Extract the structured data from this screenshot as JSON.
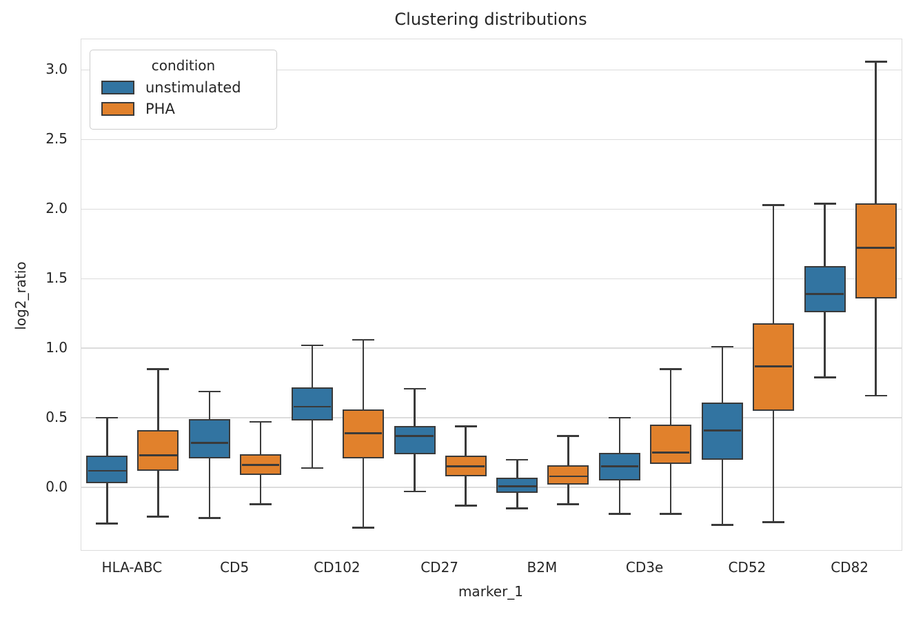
{
  "colors": {
    "unstimulated": "#3274A1",
    "pha": "#E1812C",
    "box_edge": "#3A3A3A",
    "grid": "#DCDCDC",
    "text": "#262626"
  },
  "chart_data": {
    "type": "grouped_boxplot",
    "title": "Clustering distributions",
    "xlabel": "marker_1",
    "ylabel": "log2_ratio",
    "grid": "horizontal",
    "legend": {
      "title": "condition",
      "position": "upper left"
    },
    "categories": [
      "HLA-ABC",
      "CD5",
      "CD102",
      "CD27",
      "B2M",
      "CD3e",
      "CD52",
      "CD82"
    ],
    "y_ticks": [
      "0.0",
      "0.5",
      "1.0",
      "1.5",
      "2.0",
      "2.5",
      "3.0"
    ],
    "ylim": [
      -0.45,
      3.22
    ],
    "series": [
      {
        "name": "unstimulated",
        "color": "#3274A1",
        "boxes": [
          {
            "low": -0.26,
            "q1": 0.03,
            "median": 0.12,
            "q3": 0.23,
            "high": 0.5
          },
          {
            "low": -0.22,
            "q1": 0.21,
            "median": 0.32,
            "q3": 0.49,
            "high": 0.69
          },
          {
            "low": 0.14,
            "q1": 0.48,
            "median": 0.58,
            "q3": 0.72,
            "high": 1.02
          },
          {
            "low": -0.03,
            "q1": 0.24,
            "median": 0.37,
            "q3": 0.44,
            "high": 0.71
          },
          {
            "low": -0.15,
            "q1": -0.04,
            "median": 0.01,
            "q3": 0.07,
            "high": 0.2
          },
          {
            "low": -0.19,
            "q1": 0.05,
            "median": 0.15,
            "q3": 0.25,
            "high": 0.5
          },
          {
            "low": -0.27,
            "q1": 0.2,
            "median": 0.41,
            "q3": 0.61,
            "high": 1.01
          },
          {
            "low": 0.79,
            "q1": 1.26,
            "median": 1.39,
            "q3": 1.59,
            "high": 2.04
          }
        ]
      },
      {
        "name": "PHA",
        "color": "#E1812C",
        "boxes": [
          {
            "low": -0.21,
            "q1": 0.12,
            "median": 0.23,
            "q3": 0.41,
            "high": 0.85
          },
          {
            "low": -0.12,
            "q1": 0.09,
            "median": 0.16,
            "q3": 0.24,
            "high": 0.47
          },
          {
            "low": -0.29,
            "q1": 0.21,
            "median": 0.39,
            "q3": 0.56,
            "high": 1.06
          },
          {
            "low": -0.13,
            "q1": 0.08,
            "median": 0.15,
            "q3": 0.23,
            "high": 0.44
          },
          {
            "low": -0.12,
            "q1": 0.02,
            "median": 0.08,
            "q3": 0.16,
            "high": 0.37
          },
          {
            "low": -0.19,
            "q1": 0.17,
            "median": 0.25,
            "q3": 0.45,
            "high": 0.85
          },
          {
            "low": -0.25,
            "q1": 0.55,
            "median": 0.87,
            "q3": 1.18,
            "high": 2.03
          },
          {
            "low": 0.66,
            "q1": 1.36,
            "median": 1.72,
            "q3": 2.04,
            "high": 3.06
          }
        ]
      }
    ]
  }
}
